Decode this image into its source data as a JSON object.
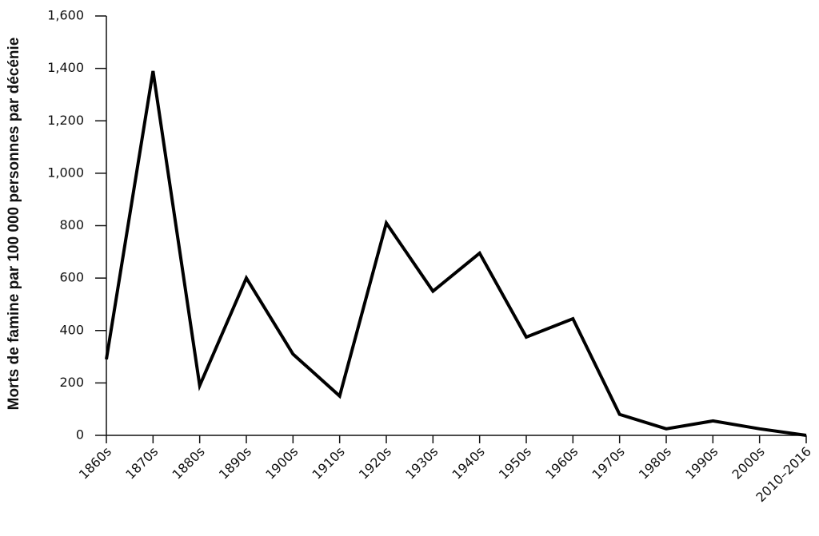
{
  "chart_data": {
    "type": "line",
    "y_label": "Morts de famine par 100 000 personnes par décénie",
    "categories": [
      "1860s",
      "1870s",
      "1880s",
      "1890s",
      "1900s",
      "1910s",
      "1920s",
      "1930s",
      "1940s",
      "1950s",
      "1960s",
      "1970s",
      "1980s",
      "1990s",
      "2000s",
      "2010–2016"
    ],
    "values": [
      290,
      1390,
      190,
      600,
      310,
      150,
      810,
      550,
      695,
      375,
      445,
      80,
      25,
      55,
      25,
      0
    ],
    "color": "#000000",
    "ylim": [
      0,
      1600
    ],
    "yticks": [
      0,
      200,
      400,
      600,
      800,
      {
        "value": 1000,
        "label": "1,000"
      },
      {
        "value": 1200,
        "label": "1,200"
      },
      {
        "value": 1400,
        "label": "1,400"
      },
      {
        "value": 1600,
        "label": "1,600"
      }
    ],
    "grid": false
  }
}
